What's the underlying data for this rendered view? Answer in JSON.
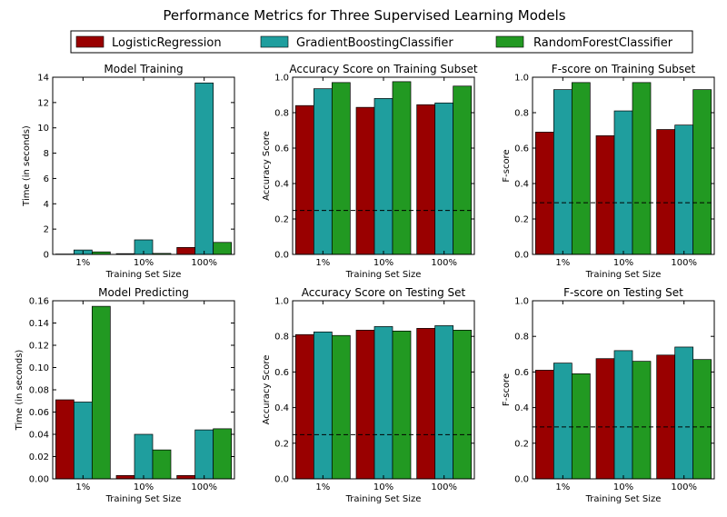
{
  "figure": {
    "title": "Performance Metrics for Three Supervised Learning Models"
  },
  "legend": {
    "placement": "top-center",
    "entries": [
      {
        "label": "LogisticRegression",
        "color": "#990000"
      },
      {
        "label": "GradientBoostingClassifier",
        "color": "#1f9e9e"
      },
      {
        "label": "RandomForestClassifier",
        "color": "#229922"
      }
    ]
  },
  "chart_data": [
    {
      "type": "bar",
      "title": "Model Training",
      "xlabel": "Training Set Size",
      "ylabel": "Time (in seconds)",
      "categories": [
        "1%",
        "10%",
        "100%"
      ],
      "ylim": [
        0,
        14
      ],
      "yticks": [
        "0",
        "2",
        "4",
        "6",
        "8",
        "10",
        "12",
        "14"
      ],
      "ytick_values": [
        0,
        2,
        4,
        6,
        8,
        10,
        12,
        14
      ],
      "baseline": null,
      "series": [
        {
          "name": "LogisticRegression",
          "values": [
            0.03,
            0.06,
            0.55
          ]
        },
        {
          "name": "GradientBoostingClassifier",
          "values": [
            0.35,
            1.15,
            13.55
          ]
        },
        {
          "name": "RandomForestClassifier",
          "values": [
            0.2,
            0.08,
            0.95
          ]
        }
      ]
    },
    {
      "type": "bar",
      "title": "Accuracy Score on Training Subset",
      "xlabel": "Training Set Size",
      "ylabel": "Accuracy Score",
      "categories": [
        "1%",
        "10%",
        "100%"
      ],
      "ylim": [
        0,
        1
      ],
      "yticks": [
        "0.0",
        "0.2",
        "0.4",
        "0.6",
        "0.8",
        "1.0"
      ],
      "ytick_values": [
        0,
        0.2,
        0.4,
        0.6,
        0.8,
        1.0
      ],
      "baseline": 0.2478,
      "series": [
        {
          "name": "LogisticRegression",
          "values": [
            0.84,
            0.83,
            0.845
          ]
        },
        {
          "name": "GradientBoostingClassifier",
          "values": [
            0.935,
            0.88,
            0.855
          ]
        },
        {
          "name": "RandomForestClassifier",
          "values": [
            0.97,
            0.975,
            0.95
          ]
        }
      ]
    },
    {
      "type": "bar",
      "title": "F-score on Training Subset",
      "xlabel": "Training Set Size",
      "ylabel": "F-score",
      "categories": [
        "1%",
        "10%",
        "100%"
      ],
      "ylim": [
        0,
        1
      ],
      "yticks": [
        "0.0",
        "0.2",
        "0.4",
        "0.6",
        "0.8",
        "1.0"
      ],
      "ytick_values": [
        0,
        0.2,
        0.4,
        0.6,
        0.8,
        1.0
      ],
      "baseline": 0.2917,
      "series": [
        {
          "name": "LogisticRegression",
          "values": [
            0.69,
            0.67,
            0.705
          ]
        },
        {
          "name": "GradientBoostingClassifier",
          "values": [
            0.93,
            0.81,
            0.73
          ]
        },
        {
          "name": "RandomForestClassifier",
          "values": [
            0.97,
            0.97,
            0.93
          ]
        }
      ]
    },
    {
      "type": "bar",
      "title": "Model Predicting",
      "xlabel": "Training Set Size",
      "ylabel": "Time (in seconds)",
      "categories": [
        "1%",
        "10%",
        "100%"
      ],
      "ylim": [
        0,
        0.16
      ],
      "yticks": [
        "0.00",
        "0.02",
        "0.04",
        "0.06",
        "0.08",
        "0.10",
        "0.12",
        "0.14",
        "0.16"
      ],
      "ytick_values": [
        0,
        0.02,
        0.04,
        0.06,
        0.08,
        0.1,
        0.12,
        0.14,
        0.16
      ],
      "baseline": null,
      "series": [
        {
          "name": "LogisticRegression",
          "values": [
            0.071,
            0.003,
            0.003
          ]
        },
        {
          "name": "GradientBoostingClassifier",
          "values": [
            0.069,
            0.04,
            0.044
          ]
        },
        {
          "name": "RandomForestClassifier",
          "values": [
            0.155,
            0.026,
            0.045
          ]
        }
      ]
    },
    {
      "type": "bar",
      "title": "Accuracy Score on Testing Set",
      "xlabel": "Training Set Size",
      "ylabel": "Accuracy Score",
      "categories": [
        "1%",
        "10%",
        "100%"
      ],
      "ylim": [
        0,
        1
      ],
      "yticks": [
        "0.0",
        "0.2",
        "0.4",
        "0.6",
        "0.8",
        "1.0"
      ],
      "ytick_values": [
        0,
        0.2,
        0.4,
        0.6,
        0.8,
        1.0
      ],
      "baseline": 0.2478,
      "series": [
        {
          "name": "LogisticRegression",
          "values": [
            0.81,
            0.835,
            0.845
          ]
        },
        {
          "name": "GradientBoostingClassifier",
          "values": [
            0.825,
            0.855,
            0.86
          ]
        },
        {
          "name": "RandomForestClassifier",
          "values": [
            0.805,
            0.83,
            0.835
          ]
        }
      ]
    },
    {
      "type": "bar",
      "title": "F-score on Testing Set",
      "xlabel": "Training Set Size",
      "ylabel": "F-score",
      "categories": [
        "1%",
        "10%",
        "100%"
      ],
      "ylim": [
        0,
        1
      ],
      "yticks": [
        "0.0",
        "0.2",
        "0.4",
        "0.6",
        "0.8",
        "1.0"
      ],
      "ytick_values": [
        0,
        0.2,
        0.4,
        0.6,
        0.8,
        1.0
      ],
      "baseline": 0.2917,
      "series": [
        {
          "name": "LogisticRegression",
          "values": [
            0.61,
            0.675,
            0.695
          ]
        },
        {
          "name": "GradientBoostingClassifier",
          "values": [
            0.65,
            0.72,
            0.74
          ]
        },
        {
          "name": "RandomForestClassifier",
          "values": [
            0.59,
            0.66,
            0.67
          ]
        }
      ]
    }
  ]
}
